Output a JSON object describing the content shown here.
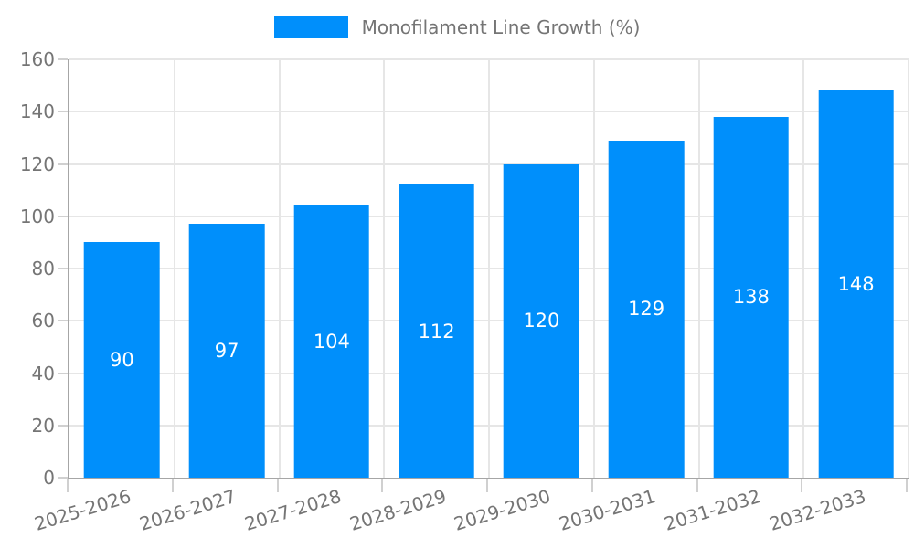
{
  "legend": {
    "label": "Monofilament Line Growth (%)"
  },
  "chart_data": {
    "type": "bar",
    "title": "",
    "xlabel": "",
    "ylabel": "",
    "categories": [
      "2025-2026",
      "2026-2027",
      "2027-2028",
      "2028-2029",
      "2029-2030",
      "2030-2031",
      "2031-2032",
      "2032-2033"
    ],
    "series": [
      {
        "name": "Monofilament Line Growth (%)",
        "values": [
          90,
          97,
          104,
          112,
          120,
          129,
          138,
          148
        ]
      }
    ],
    "values": [
      90,
      97,
      104,
      112,
      120,
      129,
      138,
      148
    ],
    "bar_labels": [
      "90",
      "97",
      "104",
      "112",
      "120",
      "129",
      "138",
      "148"
    ],
    "ylim": [
      0,
      160
    ],
    "ytick_step": 20,
    "yticks": [
      0,
      20,
      40,
      60,
      80,
      100,
      120,
      140,
      160
    ],
    "grid": true,
    "legend_position": "top-center",
    "colors": {
      "bar": "#008ffb",
      "bar_label": "#ffffff",
      "axis_text": "#757575",
      "grid_line": "#e6e6e6",
      "axis_line": "#a6a6a6",
      "tick": "#d0d0d0",
      "background": "#ffffff"
    }
  }
}
